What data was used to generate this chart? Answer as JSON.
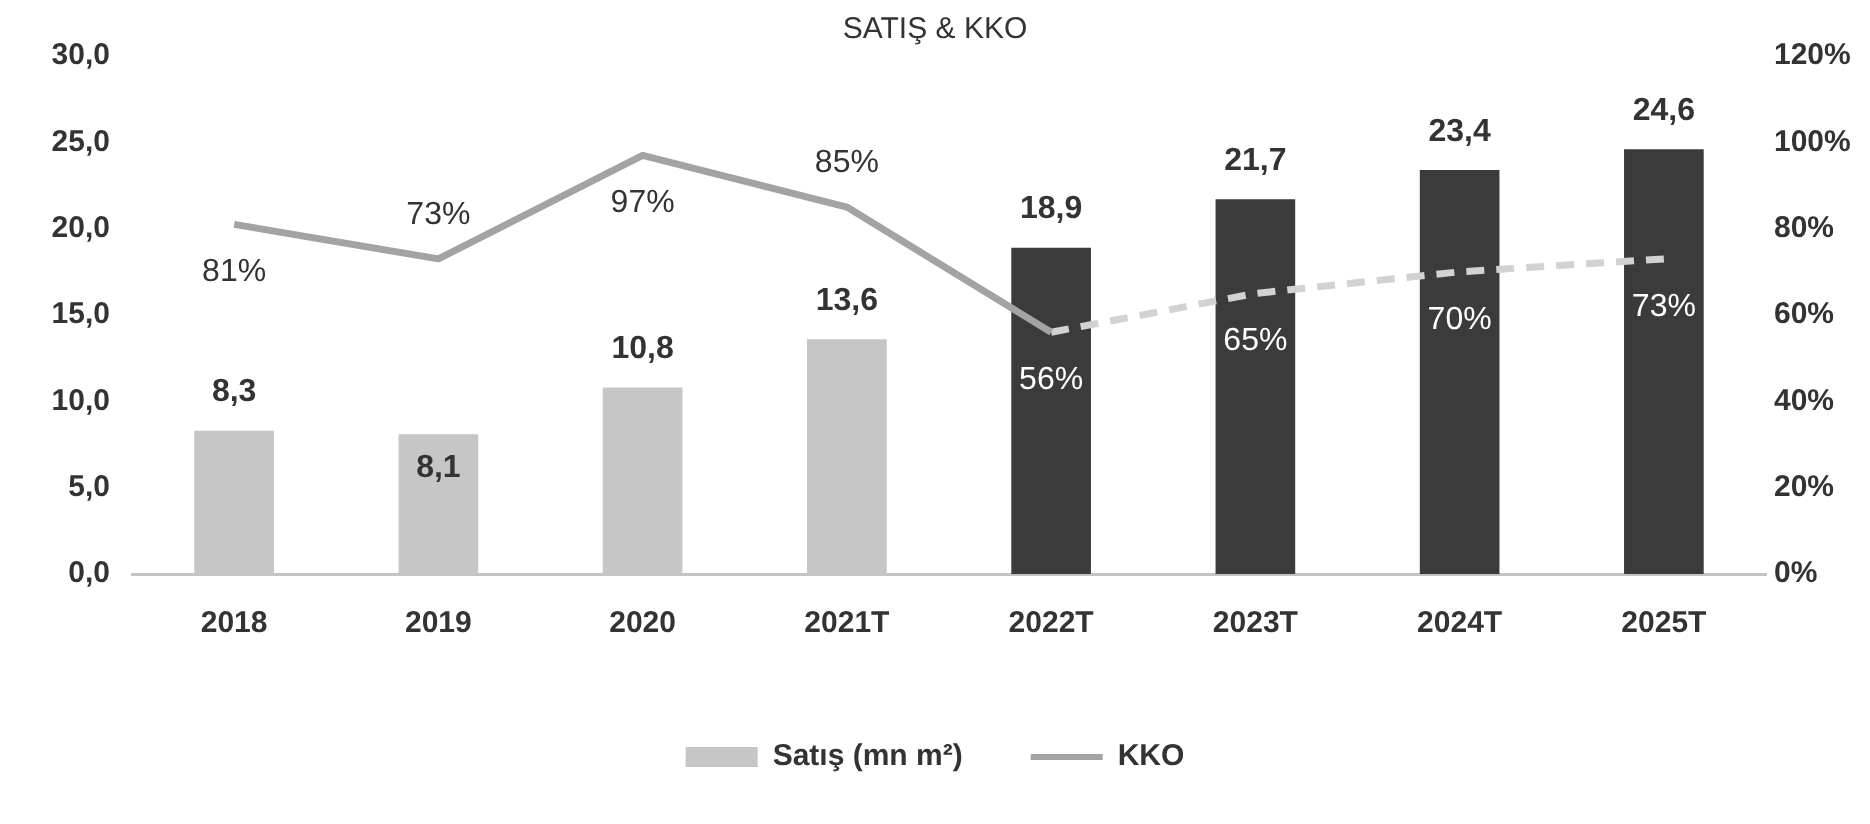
{
  "chart_data": {
    "type": "bar",
    "title": "SATIŞ & KKO",
    "categories": [
      "2018",
      "2019",
      "2020",
      "2021T",
      "2022T",
      "2023T",
      "2024T",
      "2025T"
    ],
    "series": [
      {
        "name": "Satış (mn m²)",
        "colors": [
          "#c6c6c6",
          "#c6c6c6",
          "#c6c6c6",
          "#c6c6c6",
          "#3b3b3b",
          "#3b3b3b",
          "#3b3b3b",
          "#3b3b3b"
        ],
        "values": [
          8.3,
          8.1,
          10.8,
          13.6,
          18.9,
          21.7,
          23.4,
          24.6
        ],
        "value_labels": [
          "8,3",
          "8,1",
          "10,8",
          "13,6",
          "18,9",
          "21,7",
          "23,4",
          "24,6"
        ]
      },
      {
        "name": "KKO",
        "type": "line",
        "axis": "y2",
        "color": "#a3a3a3",
        "values": [
          81,
          73,
          97,
          85,
          56,
          null,
          null,
          null
        ],
        "value_labels": [
          "81%",
          "73%",
          "97%",
          "85%",
          null,
          null,
          null,
          null
        ]
      },
      {
        "type": "line",
        "axis": "y2",
        "color": "#d2d2d2",
        "line_style": "dashed",
        "values": [
          null,
          null,
          null,
          null,
          56,
          65,
          70,
          73
        ],
        "value_labels": [
          null,
          null,
          null,
          null,
          "56%",
          "65%",
          "70%",
          "73%"
        ]
      }
    ],
    "ylim": [
      0,
      30
    ],
    "yticks": [
      {
        "value": 0,
        "label": "0,0"
      },
      {
        "value": 5,
        "label": "5,0"
      },
      {
        "value": 10,
        "label": "10,0"
      },
      {
        "value": 15,
        "label": "15,0"
      },
      {
        "value": 20,
        "label": "20,0"
      },
      {
        "value": 25,
        "label": "25,0"
      },
      {
        "value": 30,
        "label": "30,0"
      }
    ],
    "y2lim": [
      0,
      120
    ],
    "y2ticks": [
      {
        "value": 0,
        "label": "0%"
      },
      {
        "value": 20,
        "label": "20%"
      },
      {
        "value": 40,
        "label": "40%"
      },
      {
        "value": 60,
        "label": "60%"
      },
      {
        "value": 80,
        "label": "80%"
      },
      {
        "value": 100,
        "label": "100%"
      },
      {
        "value": 120,
        "label": "120%"
      }
    ],
    "grid": false,
    "legend": "bottom",
    "marker": "none"
  }
}
